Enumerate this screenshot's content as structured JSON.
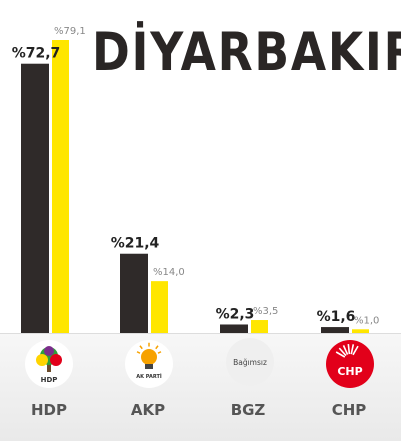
{
  "title": "DİYARBAKIR",
  "colors": {
    "current": "#2f2a29",
    "previous": "#ffe600",
    "label_dark": "#222222",
    "label_light": "#888888",
    "party_name": "#555555",
    "chp_red": "#e2001a",
    "hdp_green": "#2e9e3a",
    "akp_orange": "#f7a200"
  },
  "logos": {
    "hdp": {
      "icon": "hdp-tree-logo-icon",
      "text": "HDP"
    },
    "akp": {
      "icon": "akp-lightbulb-logo-icon",
      "text": "AK PARTİ"
    },
    "bgz": {
      "icon": "bagimsiz-logo-icon",
      "text": "Bağımsız"
    },
    "chp": {
      "icon": "chp-six-arrows-logo-icon",
      "text": "CHP"
    }
  },
  "chart_data": {
    "type": "bar",
    "categories": [
      "HDP",
      "AKP",
      "BGZ",
      "CHP"
    ],
    "series": [
      {
        "values": [
          72.7,
          21.4,
          2.3,
          1.6
        ],
        "labels": [
          "%72,7",
          "%21,4",
          "%2,3",
          "%1,6"
        ]
      },
      {
        "values": [
          79.1,
          14.0,
          3.5,
          1.0
        ],
        "labels": [
          "%79,1",
          "%14,0",
          "%3,5",
          "%1,0"
        ]
      }
    ],
    "title": "DİYARBAKIR",
    "xlabel": "",
    "ylabel": "",
    "ylim": [
      0,
      80
    ],
    "grid": false,
    "legend": "none"
  }
}
